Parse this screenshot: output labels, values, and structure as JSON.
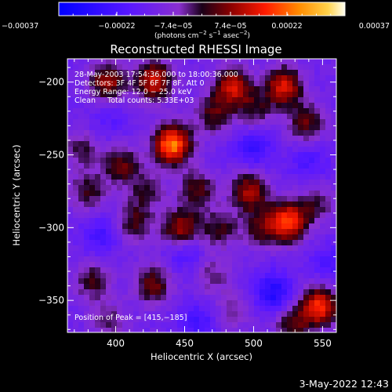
{
  "chart_data": {
    "type": "heatmap",
    "title": "Reconstructed RHESSI Image",
    "xlabel": "Heliocentric X (arcsec)",
    "ylabel": "Heliocentric Y (arcsec)",
    "xlim": [
      365,
      560
    ],
    "ylim": [
      -372,
      -184
    ],
    "x_ticks": [
      400,
      450,
      500,
      550
    ],
    "y_ticks": [
      -200,
      -250,
      -300,
      -350
    ],
    "x_tick_labels": [
      "400",
      "450",
      "500",
      "550"
    ],
    "y_tick_labels": [
      "−200",
      "−250",
      "−300",
      "−350"
    ],
    "colorbar": {
      "tick_values": [
        -0.00037,
        -0.00022,
        -7.4e-05,
        7.4e-05,
        0.00022,
        0.00037
      ],
      "tick_labels": [
        "−0.00037",
        "−0.00022",
        "−7.4e−05",
        "7.4e−05",
        "0.00022",
        "0.00037"
      ],
      "range": [
        -0.00037,
        0.00037
      ],
      "unit_parts": [
        "(photons cm",
        "−2",
        " s",
        "−1",
        " asec",
        "−2",
        ")"
      ]
    },
    "annotations": [
      "28-May-2003 17:54:36.000 to 18:00:36.000",
      "Detectors: 3F 4F 5F 6F 7F 8F, Att 0",
      "Energy Range: 12.0 − 25.0 keV",
      "Clean     Total counts: 5.33E+03"
    ],
    "peak_label": "Position of Peak = [415,−185]",
    "peak": [
      415,
      -185
    ],
    "sources": [
      {
        "x": 441,
        "y": -243,
        "amp": 0.00037
      },
      {
        "x": 428,
        "y": -199,
        "amp": 0.00026
      },
      {
        "x": 394,
        "y": -200,
        "amp": 0.00022
      },
      {
        "x": 485,
        "y": -203,
        "amp": 0.00024
      },
      {
        "x": 522,
        "y": -203,
        "amp": 0.00026
      },
      {
        "x": 471,
        "y": -222,
        "amp": 0.00016
      },
      {
        "x": 501,
        "y": -219,
        "amp": 0.00013
      },
      {
        "x": 538,
        "y": -228,
        "amp": 0.00017
      },
      {
        "x": 374,
        "y": -246,
        "amp": 0.00012
      },
      {
        "x": 404,
        "y": -257,
        "amp": 0.00017
      },
      {
        "x": 380,
        "y": -275,
        "amp": 0.00014
      },
      {
        "x": 422,
        "y": -275,
        "amp": 0.00012
      },
      {
        "x": 459,
        "y": -274,
        "amp": 0.00016
      },
      {
        "x": 497,
        "y": -275,
        "amp": 0.00022
      },
      {
        "x": 447,
        "y": -301,
        "amp": 0.00023
      },
      {
        "x": 413,
        "y": -297,
        "amp": 0.00015
      },
      {
        "x": 475,
        "y": -301,
        "amp": 0.00014
      },
      {
        "x": 525,
        "y": -296,
        "amp": 0.00031
      },
      {
        "x": 505,
        "y": -300,
        "amp": 0.00015
      },
      {
        "x": 546,
        "y": -284,
        "amp": 0.00012
      },
      {
        "x": 383,
        "y": -337,
        "amp": 0.00014
      },
      {
        "x": 427,
        "y": -339,
        "amp": 0.00018
      },
      {
        "x": 395,
        "y": -364,
        "amp": 0.0001
      },
      {
        "x": 470,
        "y": -333,
        "amp": 0.0001
      },
      {
        "x": 485,
        "y": -357,
        "amp": 9e-05
      },
      {
        "x": 548,
        "y": -354,
        "amp": 0.0003
      },
      {
        "x": 528,
        "y": -366,
        "amp": 0.00016
      },
      {
        "x": 450,
        "y": -316,
        "amp": -0.0001
      },
      {
        "x": 500,
        "y": -245,
        "amp": -0.00012
      },
      {
        "x": 515,
        "y": -345,
        "amp": -0.00017
      },
      {
        "x": 390,
        "y": -305,
        "amp": -0.0001
      },
      {
        "x": 540,
        "y": -255,
        "amp": -8e-05
      },
      {
        "x": 460,
        "y": -365,
        "amp": -0.0001
      },
      {
        "x": 395,
        "y": -225,
        "amp": -6e-05
      },
      {
        "x": 555,
        "y": -325,
        "amp": -8e-05
      }
    ]
  },
  "footer": {
    "timestamp": "3-May-2022 12:43"
  }
}
